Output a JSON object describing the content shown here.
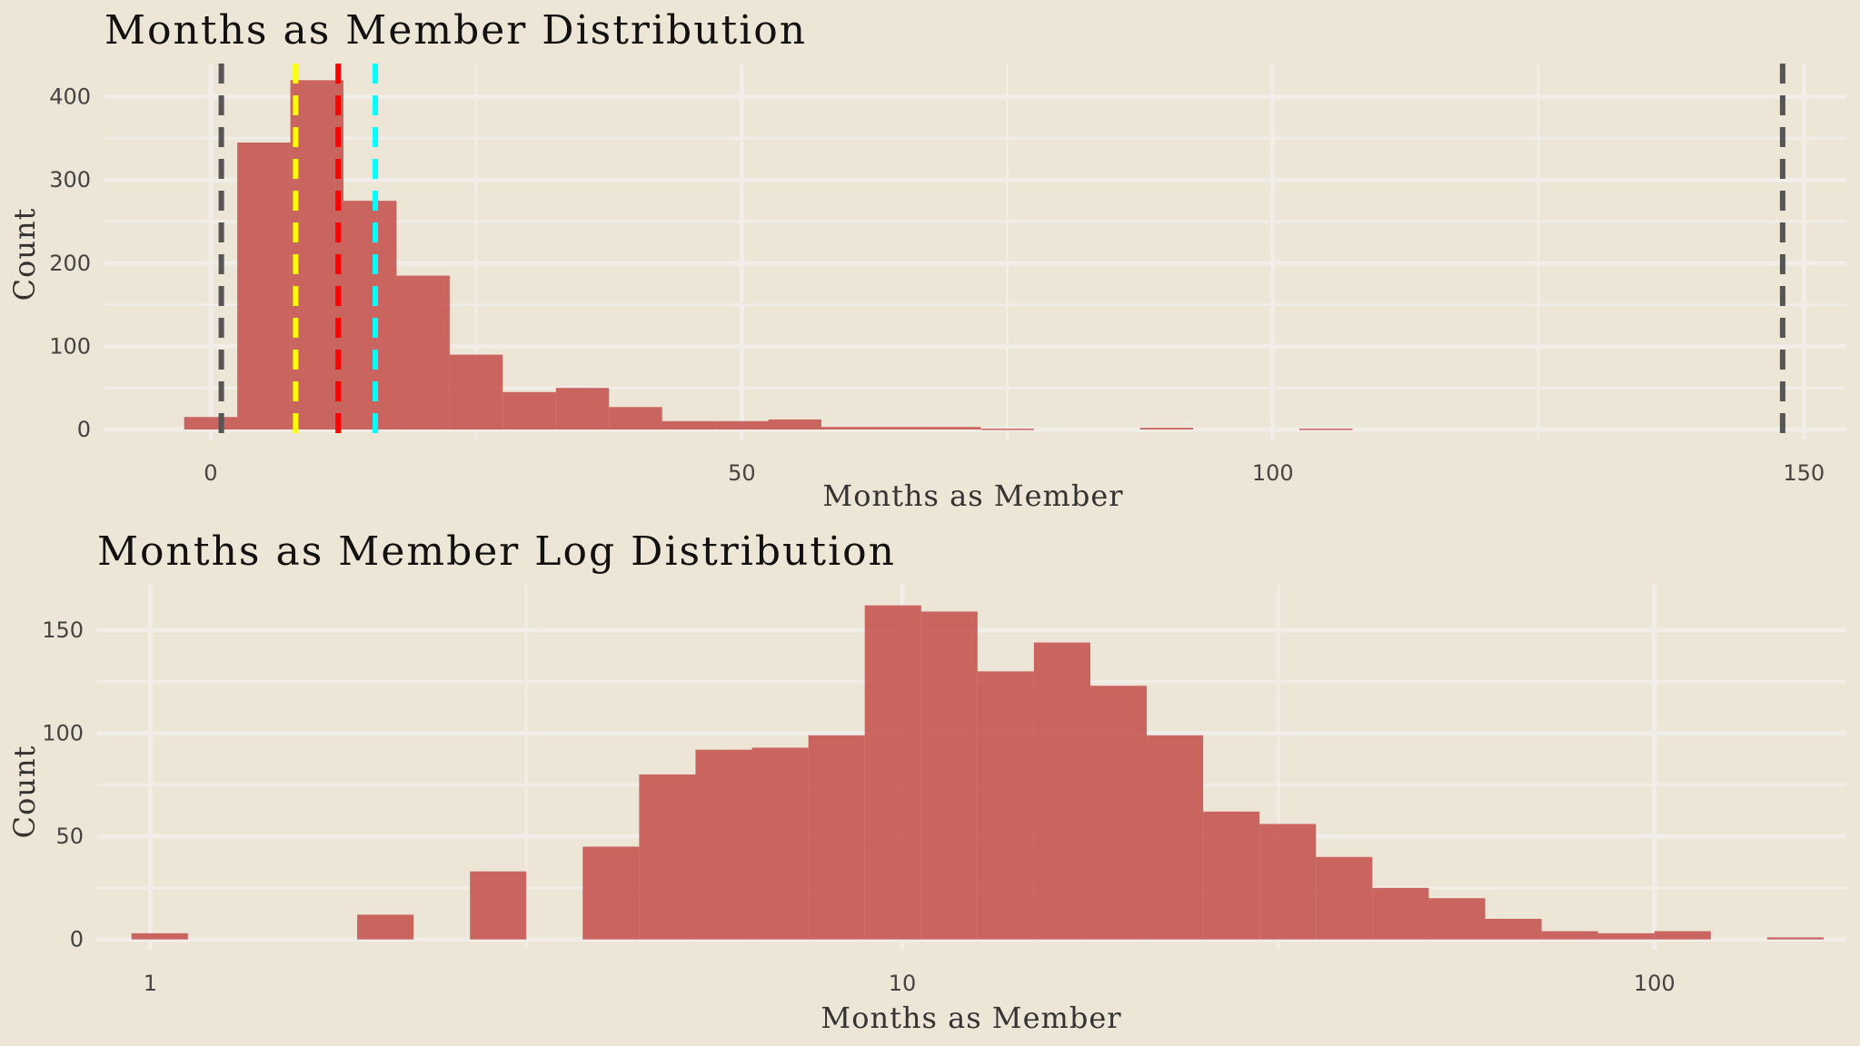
{
  "chart_data": [
    {
      "type": "bar",
      "title": "Months as Member Distribution",
      "xlabel": "Months as Member",
      "ylabel": "Count",
      "xlim": [
        -10,
        154
      ],
      "ylim": [
        -12,
        440
      ],
      "xticks": [
        0,
        50,
        100,
        150
      ],
      "xtick_labels": [
        "0",
        "50",
        "100",
        "150"
      ],
      "yticks": [
        0,
        100,
        200,
        300,
        400
      ],
      "ytick_labels": [
        "0",
        "100",
        "200",
        "300",
        "400"
      ],
      "grid": true,
      "bar_color": "#C4524E",
      "bin_width": 5,
      "bins": [
        {
          "x0": -2.5,
          "x1": 2.5,
          "count": 15
        },
        {
          "x0": 2.5,
          "x1": 7.5,
          "count": 345
        },
        {
          "x0": 7.5,
          "x1": 12.5,
          "count": 420
        },
        {
          "x0": 12.5,
          "x1": 17.5,
          "count": 275
        },
        {
          "x0": 17.5,
          "x1": 22.5,
          "count": 185
        },
        {
          "x0": 22.5,
          "x1": 27.5,
          "count": 90
        },
        {
          "x0": 27.5,
          "x1": 32.5,
          "count": 45
        },
        {
          "x0": 32.5,
          "x1": 37.5,
          "count": 50
        },
        {
          "x0": 37.5,
          "x1": 42.5,
          "count": 27
        },
        {
          "x0": 42.5,
          "x1": 47.5,
          "count": 10
        },
        {
          "x0": 47.5,
          "x1": 52.5,
          "count": 10
        },
        {
          "x0": 52.5,
          "x1": 57.5,
          "count": 12
        },
        {
          "x0": 57.5,
          "x1": 62.5,
          "count": 3
        },
        {
          "x0": 62.5,
          "x1": 67.5,
          "count": 3
        },
        {
          "x0": 67.5,
          "x1": 72.5,
          "count": 3
        },
        {
          "x0": 72.5,
          "x1": 77.5,
          "count": 1
        },
        {
          "x0": 87.5,
          "x1": 92.5,
          "count": 2
        },
        {
          "x0": 102.5,
          "x1": 107.5,
          "count": 1
        }
      ],
      "reference_lines": [
        {
          "x": 1,
          "color": "#555555"
        },
        {
          "x": 8,
          "color": "#FFFF00"
        },
        {
          "x": 12,
          "color": "#FF0000"
        },
        {
          "x": 15.5,
          "color": "#00FFFF"
        },
        {
          "x": 148,
          "color": "#555555"
        }
      ]
    },
    {
      "type": "bar",
      "title": "Months as Member Log Distribution",
      "xlabel": "Months as Member",
      "ylabel": "Count",
      "xscale": "log10",
      "xlim": [
        0.85,
        180
      ],
      "ylim": [
        -5,
        172
      ],
      "xticks": [
        1,
        10,
        100
      ],
      "xtick_labels": [
        "1",
        "10",
        "100"
      ],
      "yticks": [
        0,
        50,
        100,
        150
      ],
      "ytick_labels": [
        "0",
        "50",
        "100",
        "150"
      ],
      "grid": true,
      "bar_color": "#C4524E",
      "bins": [
        {
          "x0": 0.944,
          "x1": 1.122,
          "count": 3
        },
        {
          "x0": 1.884,
          "x1": 2.239,
          "count": 12
        },
        {
          "x0": 2.661,
          "x1": 3.162,
          "count": 33
        },
        {
          "x0": 3.758,
          "x1": 4.467,
          "count": 45
        },
        {
          "x0": 4.467,
          "x1": 5.309,
          "count": 80
        },
        {
          "x0": 5.309,
          "x1": 6.31,
          "count": 92
        },
        {
          "x0": 6.31,
          "x1": 7.499,
          "count": 93
        },
        {
          "x0": 7.499,
          "x1": 8.913,
          "count": 99
        },
        {
          "x0": 8.913,
          "x1": 10.593,
          "count": 162
        },
        {
          "x0": 10.593,
          "x1": 12.589,
          "count": 159
        },
        {
          "x0": 12.589,
          "x1": 14.962,
          "count": 130
        },
        {
          "x0": 14.962,
          "x1": 17.783,
          "count": 144
        },
        {
          "x0": 17.783,
          "x1": 21.135,
          "count": 123
        },
        {
          "x0": 21.135,
          "x1": 25.119,
          "count": 99
        },
        {
          "x0": 25.119,
          "x1": 29.854,
          "count": 62
        },
        {
          "x0": 29.854,
          "x1": 35.481,
          "count": 56
        },
        {
          "x0": 35.481,
          "x1": 42.17,
          "count": 40
        },
        {
          "x0": 42.17,
          "x1": 50.119,
          "count": 25
        },
        {
          "x0": 50.119,
          "x1": 59.566,
          "count": 20
        },
        {
          "x0": 59.566,
          "x1": 70.795,
          "count": 10
        },
        {
          "x0": 70.795,
          "x1": 84.14,
          "count": 4
        },
        {
          "x0": 84.14,
          "x1": 100.0,
          "count": 3
        },
        {
          "x0": 100.0,
          "x1": 118.85,
          "count": 4
        },
        {
          "x0": 141.25,
          "x1": 167.88,
          "count": 1
        }
      ]
    }
  ]
}
